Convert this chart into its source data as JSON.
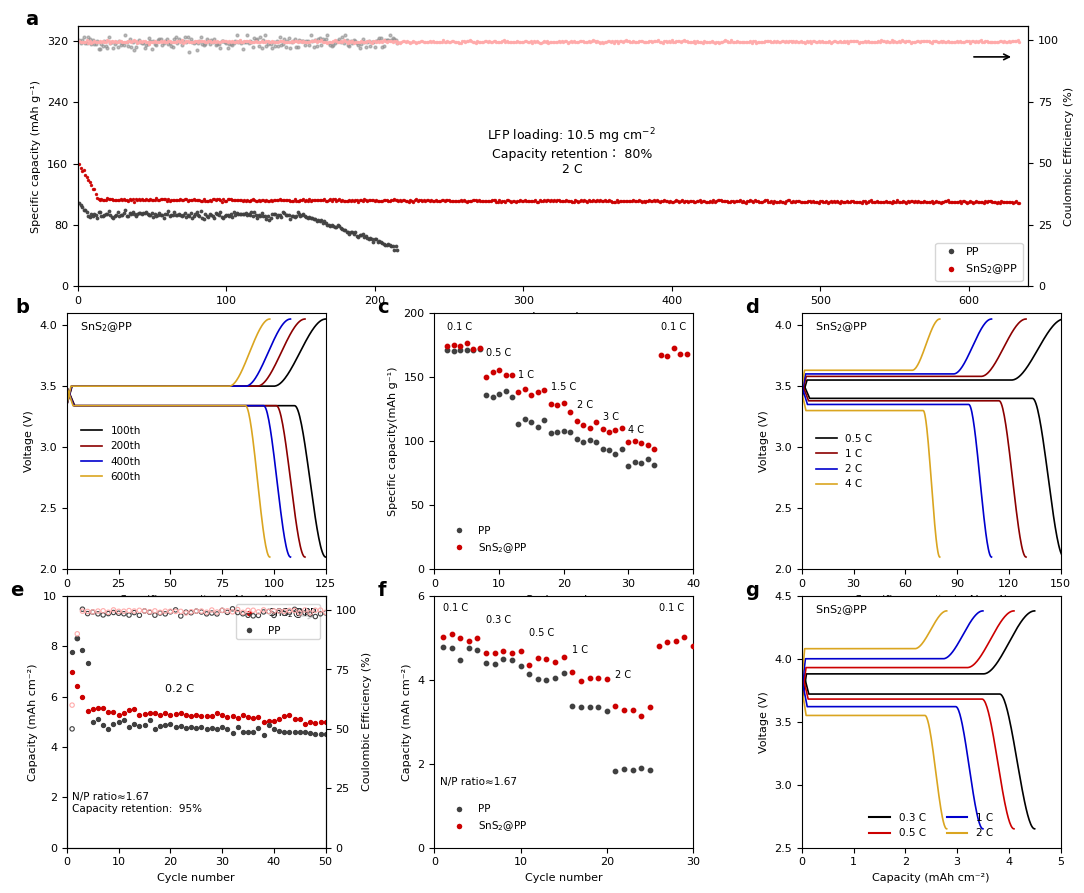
{
  "panel_a": {
    "xlabel": "Cycle number",
    "ylabel_left": "Specific capacity (mAh g⁻¹)",
    "ylabel_right": "Coulombic Efficiency (%)",
    "xlim": [
      0,
      640
    ],
    "ylim_left": [
      0,
      340
    ],
    "ylim_right": [
      0,
      106
    ],
    "yticks_left": [
      0,
      80,
      160,
      240,
      320
    ],
    "yticks_right": [
      0,
      25,
      50,
      75,
      100
    ],
    "xticks": [
      0,
      100,
      200,
      300,
      400,
      500,
      600
    ],
    "legend": [
      "PP",
      "SnS₂@PP"
    ]
  },
  "panel_b": {
    "label": "SnS₂@PP",
    "xlabel": "Specific capacity (mAh g⁻¹)",
    "ylabel": "Voltage (V)",
    "xlim": [
      0,
      125
    ],
    "ylim": [
      2.0,
      4.1
    ],
    "xticks": [
      0,
      25,
      50,
      75,
      100,
      125
    ],
    "yticks": [
      2.0,
      2.5,
      3.0,
      3.5,
      4.0
    ],
    "legend": [
      "100th",
      "200th",
      "400th",
      "600th"
    ],
    "colors": [
      "#000000",
      "#8B0000",
      "#0000CD",
      "#DAA520"
    ],
    "cap_maxes": [
      125,
      115,
      108,
      98
    ],
    "discharge_plateaus": [
      3.34,
      3.34,
      3.34,
      3.34
    ],
    "charge_plateaus": [
      3.5,
      3.5,
      3.5,
      3.5
    ]
  },
  "panel_c": {
    "xlabel": "Cycle number",
    "ylabel": "Specific capacity(mAh g⁻¹)",
    "xlim": [
      0,
      40
    ],
    "ylim": [
      0,
      200
    ],
    "yticks": [
      0,
      50,
      100,
      150,
      200
    ],
    "xticks": [
      0,
      10,
      20,
      30,
      40
    ],
    "legend": [
      "PP",
      "SnS₂@PP"
    ],
    "pp_groups": [
      [
        2,
        3,
        4,
        5,
        6,
        7
      ],
      [
        8,
        9,
        10,
        11,
        12
      ],
      [
        13,
        14,
        15,
        16,
        17
      ],
      [
        18,
        19,
        20,
        21
      ],
      [
        22,
        23,
        24,
        25
      ],
      [
        26,
        27,
        28,
        29
      ],
      [
        30,
        31,
        32,
        33,
        34
      ]
    ],
    "pp_caps": [
      170,
      135,
      115,
      107,
      100,
      92,
      82
    ],
    "sns_groups": [
      [
        2,
        3,
        4,
        5,
        6,
        7
      ],
      [
        8,
        9,
        10,
        11,
        12
      ],
      [
        13,
        14,
        15,
        16,
        17
      ],
      [
        18,
        19,
        20,
        21
      ],
      [
        22,
        23,
        24,
        25
      ],
      [
        26,
        27,
        28,
        29
      ],
      [
        30,
        31,
        32,
        33,
        34
      ],
      [
        35,
        36,
        37,
        38,
        39
      ]
    ],
    "sns_caps": [
      175,
      152,
      138,
      128,
      114,
      107,
      97,
      168
    ],
    "rate_x": [
      2,
      8,
      13,
      18,
      22,
      26,
      30,
      35
    ],
    "rate_labels": [
      "0.1 C",
      "0.5 C",
      "1 C",
      "1.5 C",
      "2 C",
      "3 C",
      "4 C",
      "0.1 C"
    ]
  },
  "panel_d": {
    "label": "SnS₂@PP",
    "xlabel": "Specific capacity (mAh g⁻¹)",
    "ylabel": "Voltage (V)",
    "xlim": [
      0,
      150
    ],
    "ylim": [
      2.0,
      4.1
    ],
    "xticks": [
      0,
      30,
      60,
      90,
      120,
      150
    ],
    "yticks": [
      2.0,
      2.5,
      3.0,
      3.5,
      4.0
    ],
    "legend": [
      "0.5 C",
      "1 C",
      "2 C",
      "4 C"
    ],
    "colors": [
      "#000000",
      "#8B0000",
      "#0000CD",
      "#DAA520"
    ],
    "cap_maxes": [
      152,
      130,
      110,
      80
    ],
    "discharge_plateaus": [
      3.4,
      3.38,
      3.35,
      3.3
    ],
    "charge_plateaus": [
      3.55,
      3.58,
      3.6,
      3.63
    ]
  },
  "panel_e": {
    "xlabel": "Cycle number",
    "ylabel_left": "Capacity (mAh cm⁻²)",
    "ylabel_right": "Coulombic Efficiency (%)",
    "xlim": [
      0,
      50
    ],
    "ylim_left": [
      0,
      10
    ],
    "ylim_right": [
      0,
      106
    ],
    "yticks_left": [
      0,
      2,
      4,
      6,
      8,
      10
    ],
    "yticks_right": [
      0,
      25,
      50,
      75,
      100
    ],
    "legend": [
      "SnS₂@PP",
      "PP"
    ]
  },
  "panel_f": {
    "xlabel": "Cycle number",
    "ylabel": "Capacity (mAh cm⁻²)",
    "xlim": [
      0,
      30
    ],
    "ylim": [
      0,
      6
    ],
    "yticks": [
      0,
      2,
      4,
      6
    ],
    "xticks": [
      0,
      10,
      20,
      30
    ],
    "legend": [
      "PP",
      "SnS₂@PP"
    ],
    "pp_groups": [
      [
        1,
        2,
        3,
        4,
        5
      ],
      [
        6,
        7,
        8,
        9,
        10
      ],
      [
        11,
        12,
        13,
        14,
        15
      ],
      [
        16,
        17,
        18,
        19,
        20
      ],
      [
        21,
        22,
        23,
        24,
        25
      ]
    ],
    "pp_caps": [
      4.7,
      4.4,
      4.1,
      3.3,
      1.8
    ],
    "sns_groups": [
      [
        1,
        2,
        3,
        4,
        5
      ],
      [
        6,
        7,
        8,
        9,
        10
      ],
      [
        11,
        12,
        13,
        14,
        15
      ],
      [
        16,
        17,
        18,
        19,
        20
      ],
      [
        21,
        22,
        23,
        24,
        25
      ],
      [
        26,
        27,
        28,
        29,
        30
      ]
    ],
    "sns_caps": [
      5.0,
      4.7,
      4.5,
      4.1,
      3.3,
      4.9
    ],
    "rate_x": [
      1,
      6,
      11,
      16,
      21,
      26
    ],
    "rate_labels": [
      "0.1 C",
      "0.3 C",
      "0.5 C",
      "1 C",
      "2 C",
      "0.1 C"
    ]
  },
  "panel_g": {
    "label": "SnS₂@PP",
    "xlabel": "Capacity (mAh cm⁻²)",
    "ylabel": "Voltage (V)",
    "xlim": [
      0,
      5
    ],
    "ylim": [
      2.5,
      4.5
    ],
    "xticks": [
      0,
      1,
      2,
      3,
      4,
      5
    ],
    "yticks": [
      2.5,
      3.0,
      3.5,
      4.0,
      4.5
    ],
    "legend": [
      "0.3 C",
      "0.5 C",
      "1 C",
      "2 C"
    ],
    "colors": [
      "#000000",
      "#CC0000",
      "#0000CD",
      "#DAA520"
    ],
    "cap_maxes": [
      4.5,
      4.1,
      3.5,
      2.8
    ],
    "discharge_plateaus": [
      3.72,
      3.68,
      3.62,
      3.55
    ],
    "charge_plateaus": [
      3.88,
      3.93,
      4.0,
      4.08
    ]
  },
  "colors": {
    "PP": "#404040",
    "SnS2PP": "#CC0000",
    "CE_PP": "#909090",
    "CE_SnS2PP": "#FFAAAA"
  }
}
